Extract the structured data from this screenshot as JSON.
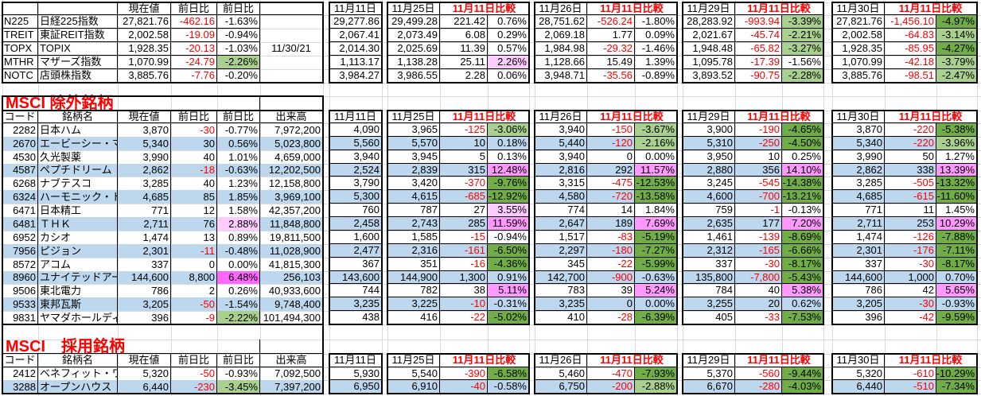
{
  "colors": {
    "negative": "#ff0000",
    "light_green": "#a9d08e",
    "dark_green": "#70ad47",
    "pink": "#ff99ff",
    "light_pink": "#ffccff",
    "magenta": "#ff66ff",
    "row_blue": "#bdd7ee"
  },
  "compare": {
    "dates": [
      "11月11日",
      "11月25日",
      "11月26日",
      "11月29日",
      "11月30日"
    ],
    "label": "11月11日比較"
  },
  "index_table": {
    "headers": [
      "",
      "",
      "現在値",
      "前日比",
      "前日比"
    ],
    "date": "11/30/21",
    "rows": [
      {
        "code": "N225",
        "name": "日経225指数",
        "price": "27,821.76",
        "chg": "-462.16",
        "pct": "-1.63%",
        "fill": "",
        "base": "29,277.86",
        "cmp": [
          [
            "29,499.28",
            "221.42",
            "0.76%",
            ""
          ],
          [
            "28,751.62",
            "-526.24",
            "-1.80%",
            ""
          ],
          [
            "28,283.92",
            "-993.94",
            "-3.39%",
            "lg"
          ],
          [
            "27,821.76",
            "-1,456.10",
            "-4.97%",
            "dg"
          ]
        ]
      },
      {
        "code": "TREIT",
        "name": "東証REIT指数",
        "price": "2,002.58",
        "chg": "-19.09",
        "pct": "-0.94%",
        "fill": "",
        "base": "2,067.41",
        "cmp": [
          [
            "2,073.49",
            "6.08",
            "0.29%",
            ""
          ],
          [
            "2,069.18",
            "1.77",
            "0.09%",
            ""
          ],
          [
            "2,021.67",
            "-45.74",
            "-2.21%",
            "lg"
          ],
          [
            "2,002.58",
            "-64.83",
            "-3.14%",
            "lg"
          ]
        ]
      },
      {
        "code": "TOPX",
        "name": "TOPIX",
        "price": "1,928.35",
        "chg": "-20.13",
        "pct": "-1.03%",
        "fill": "",
        "base": "2,014.30",
        "cmp": [
          [
            "2,025.69",
            "11.39",
            "0.57%",
            ""
          ],
          [
            "1,984.98",
            "-29.32",
            "-1.46%",
            ""
          ],
          [
            "1,948.48",
            "-65.82",
            "-3.27%",
            "lg"
          ],
          [
            "1,928.35",
            "-85.95",
            "-4.27%",
            "dg"
          ]
        ]
      },
      {
        "code": "MTHR",
        "name": "マザーズ指数",
        "price": "1,070.99",
        "chg": "-24.79",
        "pct": "-2.26%",
        "fill": "lg",
        "base": "1,113.17",
        "cmp": [
          [
            "1,138.28",
            "25.11",
            "2.26%",
            "lpk"
          ],
          [
            "1,128.66",
            "15.49",
            "1.39%",
            ""
          ],
          [
            "1,095.78",
            "-17.39",
            "-1.56%",
            ""
          ],
          [
            "1,070.99",
            "-42.18",
            "-3.79%",
            "lg"
          ]
        ]
      },
      {
        "code": "NOTC",
        "name": "店頭株指数",
        "price": "3,885.76",
        "chg": "-7.76",
        "pct": "-0.20%",
        "fill": "",
        "base": "3,984.27",
        "cmp": [
          [
            "3,986.55",
            "2.28",
            "0.06%",
            ""
          ],
          [
            "3,948.71",
            "-35.56",
            "-0.89%",
            ""
          ],
          [
            "3,893.52",
            "-90.75",
            "-2.28%",
            "lg"
          ],
          [
            "3,885.76",
            "-98.51",
            "-2.47%",
            "lg"
          ]
        ]
      }
    ]
  },
  "excluded": {
    "title": "MSCI 除外銘柄",
    "headers": [
      "コード",
      "銘柄名",
      "現在値",
      "前日比",
      "前日比",
      "出来高"
    ],
    "rows": [
      {
        "code": "2282",
        "name": "日本ハム",
        "price": "3,870",
        "chg": "-30",
        "pct": "-0.77%",
        "fill": "",
        "vol": "7,972,200",
        "base": "4,090",
        "cmp": [
          [
            "3,965",
            "-125",
            "-3.06%",
            "lg"
          ],
          [
            "3,940",
            "-150",
            "-3.67%",
            "lg"
          ],
          [
            "3,900",
            "-190",
            "-4.65%",
            "dg"
          ],
          [
            "3,870",
            "-220",
            "-5.38%",
            "dg"
          ]
        ]
      },
      {
        "code": "2670",
        "name": "エービーシー・マート",
        "price": "5,340",
        "chg": "30",
        "pct": "0.56%",
        "fill": "",
        "vol": "5,023,800",
        "base": "5,560",
        "cmp": [
          [
            "5,570",
            "10",
            "0.18%",
            ""
          ],
          [
            "5,440",
            "-120",
            "-2.16%",
            "lg"
          ],
          [
            "5,310",
            "-250",
            "-4.50%",
            "dg"
          ],
          [
            "5,340",
            "-220",
            "-3.96%",
            "lg"
          ]
        ]
      },
      {
        "code": "4530",
        "name": "久光製薬",
        "price": "3,990",
        "chg": "40",
        "pct": "1.01%",
        "fill": "",
        "vol": "4,659,000",
        "base": "3,940",
        "cmp": [
          [
            "3,945",
            "5",
            "0.13%",
            ""
          ],
          [
            "3,940",
            "0",
            "0.00%",
            ""
          ],
          [
            "3,950",
            "10",
            "0.25%",
            ""
          ],
          [
            "3,990",
            "50",
            "1.27%",
            ""
          ]
        ]
      },
      {
        "code": "4587",
        "name": "ペプチドリーム",
        "price": "2,862",
        "chg": "-18",
        "pct": "-0.63%",
        "fill": "",
        "vol": "12,202,500",
        "base": "2,524",
        "cmp": [
          [
            "2,839",
            "315",
            "12.48%",
            "pk"
          ],
          [
            "2,816",
            "292",
            "11.57%",
            "pk"
          ],
          [
            "2,880",
            "356",
            "14.10%",
            "pk"
          ],
          [
            "2,862",
            "338",
            "13.39%",
            "pk"
          ]
        ]
      },
      {
        "code": "6268",
        "name": "ナブテスコ",
        "price": "3,285",
        "chg": "40",
        "pct": "1.23%",
        "fill": "",
        "vol": "12,158,800",
        "base": "3,790",
        "cmp": [
          [
            "3,420",
            "-370",
            "-9.76%",
            "dg"
          ],
          [
            "3,315",
            "-475",
            "-12.53%",
            "dg"
          ],
          [
            "3,245",
            "-545",
            "-14.38%",
            "dg"
          ],
          [
            "3,285",
            "-505",
            "-13.32%",
            "dg"
          ]
        ]
      },
      {
        "code": "6324",
        "name": "ハーモニック・ドライブ・シ",
        "price": "4,685",
        "chg": "85",
        "pct": "1.85%",
        "fill": "",
        "vol": "3,969,100",
        "base": "5,300",
        "cmp": [
          [
            "4,615",
            "-685",
            "-12.92%",
            "dg"
          ],
          [
            "4,580",
            "-720",
            "-13.58%",
            "dg"
          ],
          [
            "4,600",
            "-700",
            "-13.21%",
            "dg"
          ],
          [
            "4,685",
            "-615",
            "-11.60%",
            "dg"
          ]
        ]
      },
      {
        "code": "6471",
        "name": "日本精工",
        "price": "771",
        "chg": "12",
        "pct": "1.58%",
        "fill": "",
        "vol": "42,357,200",
        "base": "760",
        "cmp": [
          [
            "787",
            "27",
            "3.55%",
            "lpk"
          ],
          [
            "774",
            "14",
            "1.84%",
            ""
          ],
          [
            "759",
            "-1",
            "-0.13%",
            ""
          ],
          [
            "771",
            "11",
            "1.45%",
            ""
          ]
        ]
      },
      {
        "code": "6481",
        "name": "ＴＨＫ",
        "price": "2,711",
        "chg": "76",
        "pct": "2.88%",
        "fill": "lpk",
        "vol": "11,848,800",
        "base": "2,458",
        "cmp": [
          [
            "2,743",
            "285",
            "11.59%",
            "pk"
          ],
          [
            "2,647",
            "189",
            "7.69%",
            "pk"
          ],
          [
            "2,635",
            "177",
            "7.20%",
            "pk"
          ],
          [
            "2,711",
            "253",
            "10.29%",
            "pk"
          ]
        ]
      },
      {
        "code": "6952",
        "name": "カシオ",
        "price": "1,474",
        "chg": "13",
        "pct": "0.89%",
        "fill": "",
        "vol": "19,811,500",
        "base": "1,600",
        "cmp": [
          [
            "1,585",
            "-15",
            "-0.94%",
            ""
          ],
          [
            "1,517",
            "-83",
            "-5.19%",
            "dg"
          ],
          [
            "1,461",
            "-139",
            "-8.69%",
            "dg"
          ],
          [
            "1,474",
            "-126",
            "-7.88%",
            "dg"
          ]
        ]
      },
      {
        "code": "7956",
        "name": "ピジョン",
        "price": "2,301",
        "chg": "-11",
        "pct": "-0.48%",
        "fill": "",
        "vol": "11,028,900",
        "base": "2,477",
        "cmp": [
          [
            "2,316",
            "-161",
            "-6.50%",
            "dg"
          ],
          [
            "2,297",
            "-180",
            "-7.27%",
            "dg"
          ],
          [
            "2,312",
            "-165",
            "-6.66%",
            "dg"
          ],
          [
            "2,301",
            "-176",
            "-7.11%",
            "dg"
          ]
        ]
      },
      {
        "code": "8572",
        "name": "アコム",
        "price": "337",
        "chg": "0",
        "pct": "0.00%",
        "fill": "",
        "vol": "41,815,300",
        "base": "367",
        "cmp": [
          [
            "351",
            "-16",
            "-4.36%",
            "dg"
          ],
          [
            "345",
            "-22",
            "-5.99%",
            "dg"
          ],
          [
            "337",
            "-30",
            "-8.17%",
            "dg"
          ],
          [
            "337",
            "-30",
            "-8.17%",
            "dg"
          ]
        ]
      },
      {
        "code": "8960",
        "name": "ユナイテッドアーバン投資",
        "price": "144,600",
        "chg": "8,800",
        "pct": "6.48%",
        "fill": "mpk",
        "vol": "256,103",
        "base": "143,600",
        "cmp": [
          [
            "144,900",
            "1,300",
            "0.91%",
            ""
          ],
          [
            "142,700",
            "-900",
            "-0.63%",
            ""
          ],
          [
            "135,800",
            "-7,800",
            "-5.43%",
            "dg"
          ],
          [
            "144,600",
            "1,000",
            "0.70%",
            ""
          ]
        ]
      },
      {
        "code": "9506",
        "name": "東北電力",
        "price": "786",
        "chg": "2",
        "pct": "0.26%",
        "fill": "",
        "vol": "40,933,600",
        "base": "744",
        "cmp": [
          [
            "782",
            "38",
            "5.11%",
            "pk"
          ],
          [
            "783",
            "39",
            "5.24%",
            "pk"
          ],
          [
            "784",
            "40",
            "5.38%",
            "pk"
          ],
          [
            "786",
            "42",
            "5.65%",
            "pk"
          ]
        ]
      },
      {
        "code": "9533",
        "name": "東邦瓦斯",
        "price": "3,205",
        "chg": "-50",
        "pct": "-1.54%",
        "fill": "",
        "vol": "9,748,400",
        "base": "3,235",
        "cmp": [
          [
            "3,225",
            "-10",
            "-0.31%",
            ""
          ],
          [
            "3,235",
            "0",
            "0.00%",
            ""
          ],
          [
            "3,255",
            "20",
            "0.62%",
            ""
          ],
          [
            "3,205",
            "-30",
            "-0.93%",
            ""
          ]
        ]
      },
      {
        "code": "9831",
        "name": "ヤマダホールディングス",
        "price": "396",
        "chg": "-9",
        "pct": "-2.22%",
        "fill": "lg",
        "vol": "101,494,300",
        "base": "438",
        "cmp": [
          [
            "416",
            "-22",
            "-5.02%",
            "dg"
          ],
          [
            "410",
            "-28",
            "-6.39%",
            "dg"
          ],
          [
            "405",
            "-33",
            "-7.53%",
            "dg"
          ],
          [
            "396",
            "-42",
            "-9.59%",
            "dg"
          ]
        ]
      }
    ]
  },
  "adopted": {
    "title": "MSCI　採用銘柄",
    "headers": [
      "コード",
      "銘柄名",
      "現在値",
      "前日比",
      "前日比",
      "出来高"
    ],
    "rows": [
      {
        "code": "2412",
        "name": "ベネフィット・ワン",
        "price": "5,320",
        "chg": "-50",
        "pct": "-0.93%",
        "fill": "",
        "vol": "7,092,500",
        "base": "5,930",
        "cmp": [
          [
            "5,540",
            "-390",
            "-6.58%",
            "dg"
          ],
          [
            "5,460",
            "-470",
            "-7.93%",
            "dg"
          ],
          [
            "5,370",
            "-560",
            "-9.44%",
            "dg"
          ],
          [
            "5,320",
            "-610",
            "-10.29%",
            "dg"
          ]
        ]
      },
      {
        "code": "3288",
        "name": "オープンハウス",
        "price": "6,440",
        "chg": "-230",
        "pct": "-3.45%",
        "fill": "lg",
        "vol": "7,397,200",
        "base": "6,950",
        "cmp": [
          [
            "6,910",
            "-40",
            "-0.58%",
            ""
          ],
          [
            "6,750",
            "-200",
            "-2.88%",
            "lg"
          ],
          [
            "6,670",
            "-280",
            "-4.03%",
            "dg"
          ],
          [
            "6,440",
            "-510",
            "-7.34%",
            "dg"
          ]
        ]
      }
    ]
  }
}
